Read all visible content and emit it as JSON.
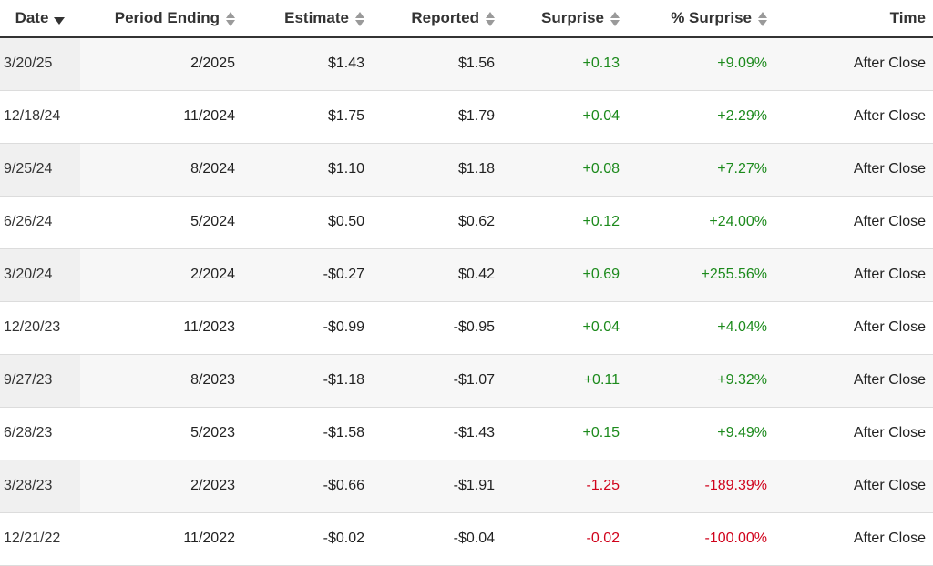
{
  "colors": {
    "positive": "#1c8a1c",
    "negative": "#d0021b"
  },
  "table": {
    "headers": {
      "date": "Date",
      "period": "Period Ending",
      "estimate": "Estimate",
      "reported": "Reported",
      "surprise": "Surprise",
      "pct_surprise": "% Surprise",
      "time": "Time"
    },
    "sort": {
      "column": "date",
      "direction": "descending"
    },
    "rows": [
      {
        "date": "3/20/25",
        "period": "2/2025",
        "estimate": "$1.43",
        "reported": "$1.56",
        "surprise": "+0.13",
        "pct_surprise": "+9.09%",
        "time": "After Close",
        "sign": "pos"
      },
      {
        "date": "12/18/24",
        "period": "11/2024",
        "estimate": "$1.75",
        "reported": "$1.79",
        "surprise": "+0.04",
        "pct_surprise": "+2.29%",
        "time": "After Close",
        "sign": "pos"
      },
      {
        "date": "9/25/24",
        "period": "8/2024",
        "estimate": "$1.10",
        "reported": "$1.18",
        "surprise": "+0.08",
        "pct_surprise": "+7.27%",
        "time": "After Close",
        "sign": "pos"
      },
      {
        "date": "6/26/24",
        "period": "5/2024",
        "estimate": "$0.50",
        "reported": "$0.62",
        "surprise": "+0.12",
        "pct_surprise": "+24.00%",
        "time": "After Close",
        "sign": "pos"
      },
      {
        "date": "3/20/24",
        "period": "2/2024",
        "estimate": "-$0.27",
        "reported": "$0.42",
        "surprise": "+0.69",
        "pct_surprise": "+255.56%",
        "time": "After Close",
        "sign": "pos"
      },
      {
        "date": "12/20/23",
        "period": "11/2023",
        "estimate": "-$0.99",
        "reported": "-$0.95",
        "surprise": "+0.04",
        "pct_surprise": "+4.04%",
        "time": "After Close",
        "sign": "pos"
      },
      {
        "date": "9/27/23",
        "period": "8/2023",
        "estimate": "-$1.18",
        "reported": "-$1.07",
        "surprise": "+0.11",
        "pct_surprise": "+9.32%",
        "time": "After Close",
        "sign": "pos"
      },
      {
        "date": "6/28/23",
        "period": "5/2023",
        "estimate": "-$1.58",
        "reported": "-$1.43",
        "surprise": "+0.15",
        "pct_surprise": "+9.49%",
        "time": "After Close",
        "sign": "pos"
      },
      {
        "date": "3/28/23",
        "period": "2/2023",
        "estimate": "-$0.66",
        "reported": "-$1.91",
        "surprise": "-1.25",
        "pct_surprise": "-189.39%",
        "time": "After Close",
        "sign": "neg"
      },
      {
        "date": "12/21/22",
        "period": "11/2022",
        "estimate": "-$0.02",
        "reported": "-$0.04",
        "surprise": "-0.02",
        "pct_surprise": "-100.00%",
        "time": "After Close",
        "sign": "neg"
      }
    ]
  }
}
